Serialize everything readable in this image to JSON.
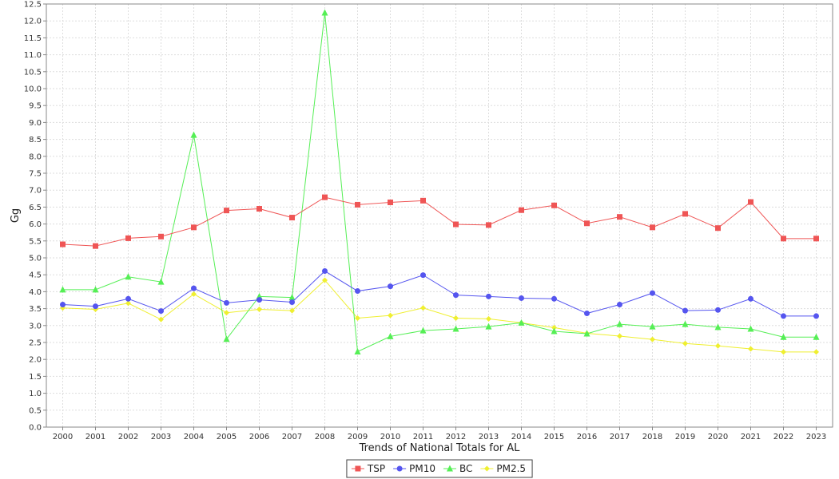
{
  "chart_data": {
    "type": "line",
    "xlabel": "Trends of National Totals for AL",
    "ylabel": "Gg",
    "ylim": [
      0,
      12.5
    ],
    "y_tick_step": 0.5,
    "grid": true,
    "legend_position": "bottom-center",
    "categories": [
      "2000",
      "2001",
      "2002",
      "2003",
      "2004",
      "2005",
      "2006",
      "2007",
      "2008",
      "2009",
      "2010",
      "2011",
      "2012",
      "2013",
      "2014",
      "2015",
      "2016",
      "2017",
      "2018",
      "2019",
      "2020",
      "2021",
      "2022",
      "2023"
    ],
    "series": [
      {
        "name": "TSP",
        "color": "#ef5555",
        "marker": "square",
        "values": [
          5.4,
          5.35,
          5.58,
          5.63,
          5.9,
          6.4,
          6.45,
          6.19,
          6.79,
          6.57,
          6.64,
          6.69,
          5.99,
          5.97,
          6.41,
          6.55,
          6.02,
          6.21,
          5.9,
          6.3,
          5.88,
          6.65,
          5.57,
          5.57
        ]
      },
      {
        "name": "PM10",
        "color": "#5555ef",
        "marker": "circle",
        "values": [
          3.62,
          3.57,
          3.79,
          3.43,
          4.1,
          3.67,
          3.76,
          3.69,
          4.61,
          4.02,
          4.16,
          4.49,
          3.9,
          3.86,
          3.81,
          3.79,
          3.36,
          3.62,
          3.96,
          3.44,
          3.46,
          3.79,
          3.28,
          3.28
        ]
      },
      {
        "name": "BC",
        "color": "#55ef55",
        "marker": "triangle",
        "values": [
          4.06,
          4.06,
          4.44,
          4.29,
          8.63,
          2.6,
          3.86,
          3.83,
          12.24,
          2.23,
          2.68,
          2.85,
          2.9,
          2.97,
          3.08,
          2.83,
          2.76,
          3.04,
          2.97,
          3.04,
          2.95,
          2.9,
          2.66,
          2.66
        ]
      },
      {
        "name": "PM2.5",
        "color": "#efef30",
        "marker": "diamond",
        "values": [
          3.52,
          3.48,
          3.66,
          3.18,
          3.93,
          3.38,
          3.48,
          3.44,
          4.34,
          3.22,
          3.3,
          3.52,
          3.22,
          3.2,
          3.08,
          2.94,
          2.77,
          2.69,
          2.59,
          2.47,
          2.4,
          2.31,
          2.22,
          2.22
        ]
      }
    ]
  }
}
